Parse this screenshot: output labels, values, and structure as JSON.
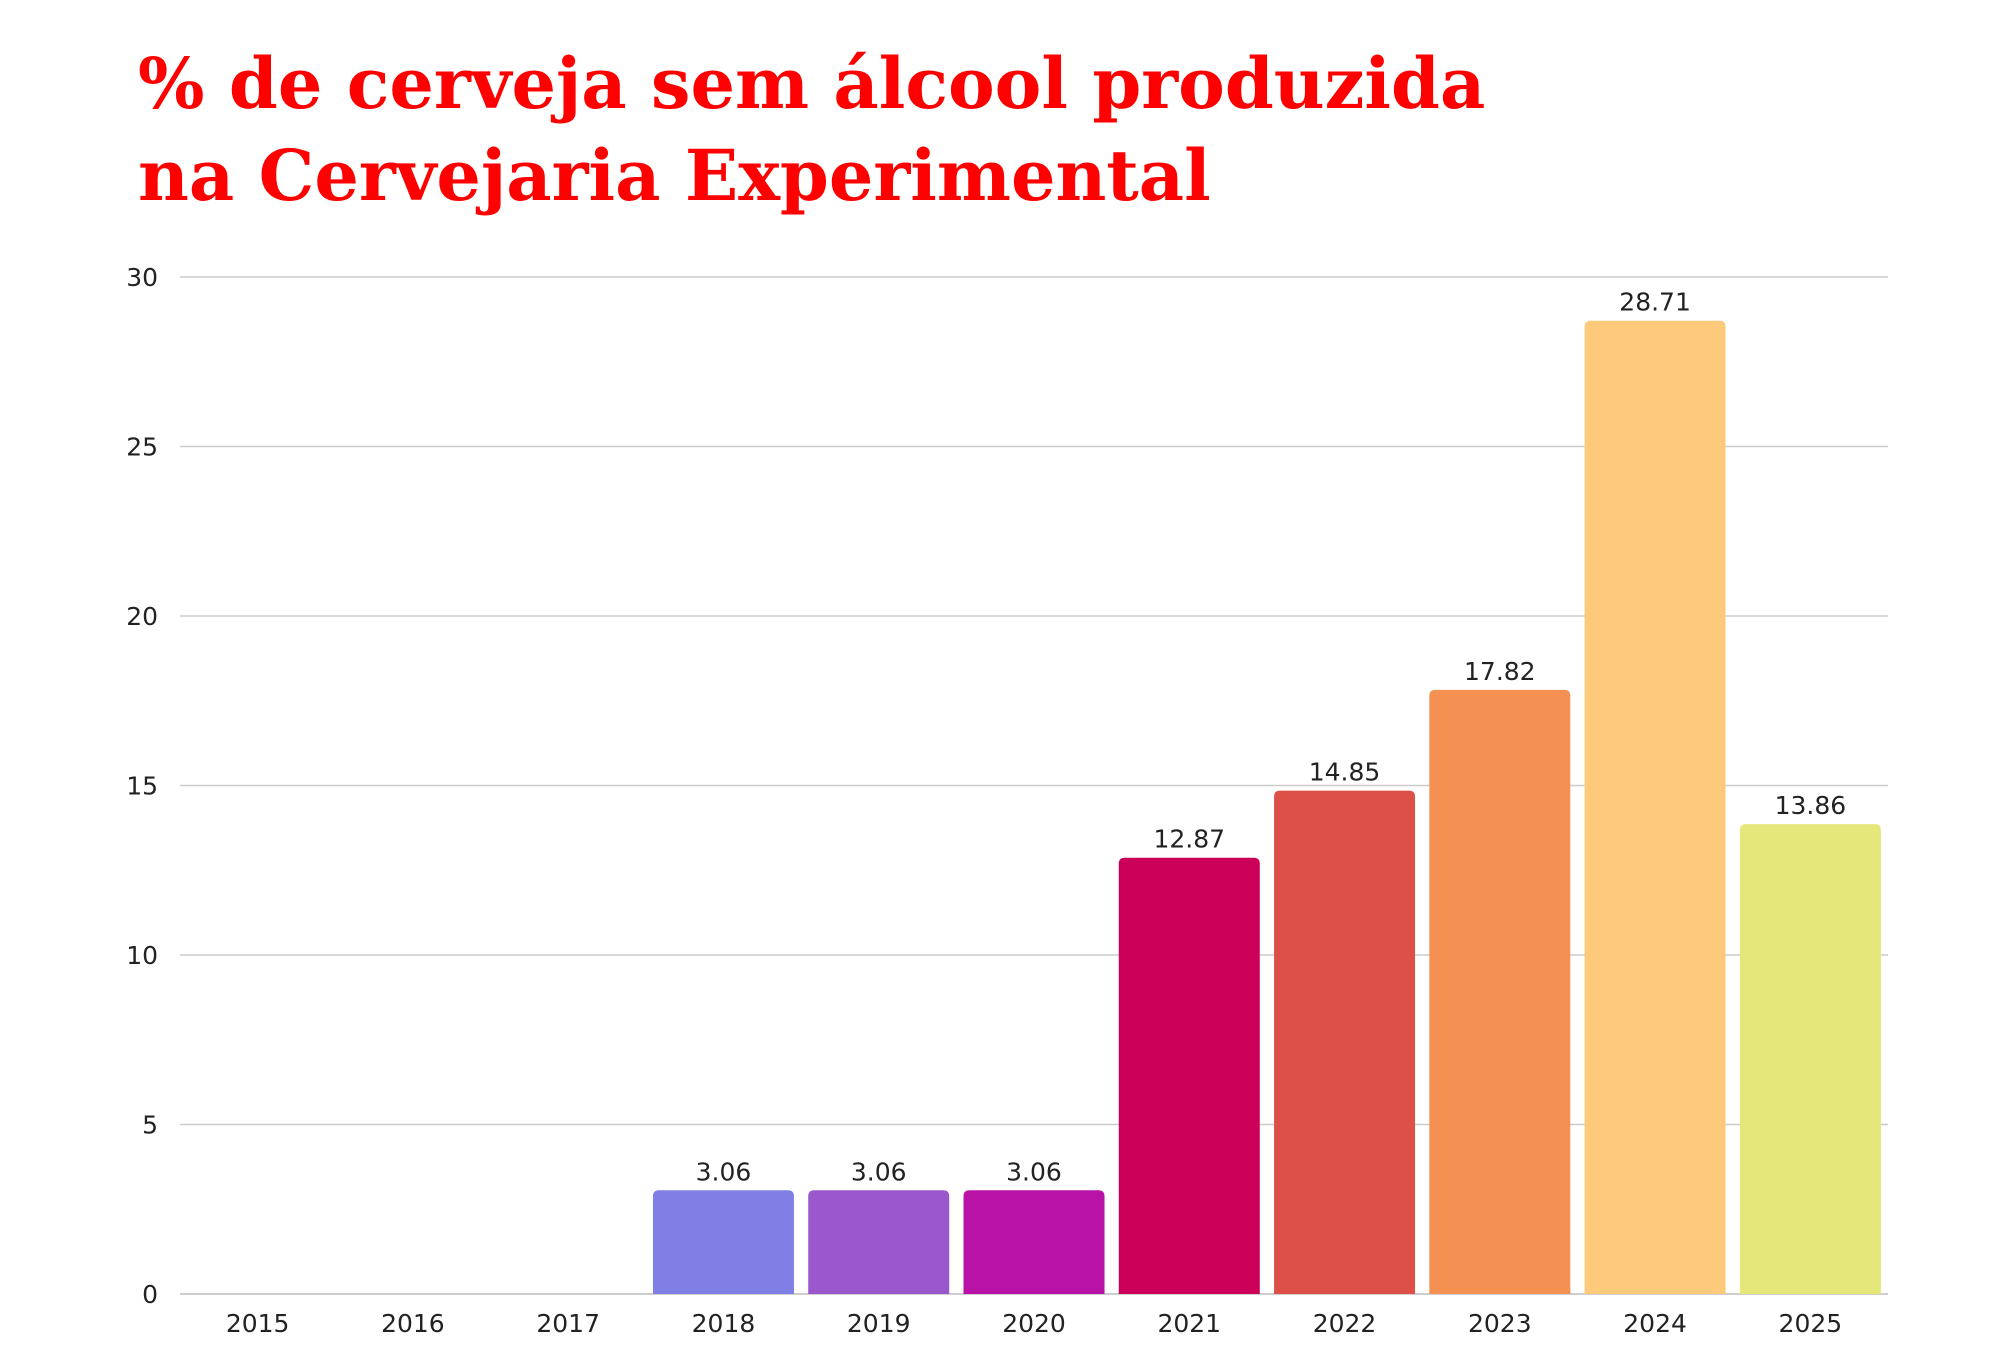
{
  "chart_data": {
    "type": "bar",
    "title_lines": [
      "% de cerveja sem álcool produzida",
      "na Cervejaria Experimental"
    ],
    "xlabel": "",
    "ylabel": "",
    "categories": [
      "2015",
      "2016",
      "2017",
      "2018",
      "2019",
      "2020",
      "2021",
      "2022",
      "2023",
      "2024",
      "2025"
    ],
    "values": [
      0,
      0,
      0,
      3.06,
      3.06,
      3.06,
      12.87,
      14.85,
      17.82,
      28.71,
      13.86
    ],
    "data_labels": [
      "",
      "",
      "",
      "3.06",
      "3.06",
      "3.06",
      "12.87",
      "14.85",
      "17.82",
      "28.71",
      "13.86"
    ],
    "colors": [
      "#7f7fe6",
      "#7f7fe6",
      "#7f7fe6",
      "#7f7fe6",
      "#9b57cc",
      "#b912a7",
      "#cc0058",
      "#dd5047",
      "#f49152",
      "#fdca7b",
      "#e5e77b"
    ],
    "ylim": [
      0,
      30
    ],
    "yticks": [
      "0",
      "5",
      "10",
      "15",
      "20",
      "25",
      "30"
    ],
    "grid": true,
    "legend": "none"
  }
}
